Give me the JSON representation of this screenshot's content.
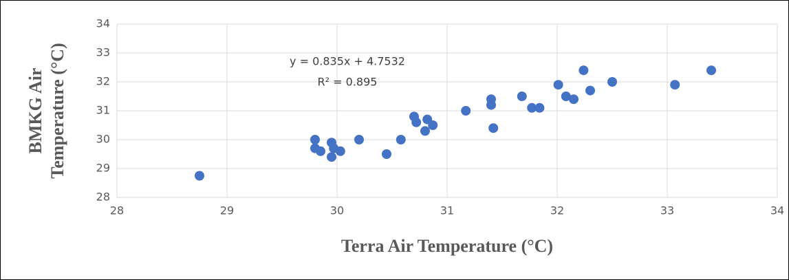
{
  "chart_data": {
    "type": "scatter",
    "x_label": "Terra Air Temperature (°C)",
    "y_label": [
      "BMKG Air",
      "Temperature (°C)"
    ],
    "annotations": [
      "y = 0.835x + 4.7532",
      "R² = 0.895"
    ],
    "series": [
      {
        "color": "#4472c4",
        "x": [
          28.75,
          29.8,
          29.8,
          29.85,
          29.95,
          29.95,
          29.97,
          30.03,
          30.2,
          30.45,
          30.58,
          30.7,
          30.72,
          30.8,
          30.82,
          30.87,
          31.17,
          31.4,
          31.4,
          31.42,
          31.68,
          31.77,
          31.84,
          32.01,
          32.08,
          32.15,
          32.24,
          32.3,
          32.5,
          33.07,
          33.4
        ],
        "values": [
          28.75,
          30.0,
          29.7,
          29.6,
          29.9,
          29.4,
          29.7,
          29.6,
          30.0,
          29.5,
          30.0,
          30.8,
          30.6,
          30.3,
          30.7,
          30.5,
          31.0,
          31.4,
          31.2,
          30.4,
          31.5,
          31.1,
          31.1,
          31.9,
          31.5,
          31.4,
          32.4,
          31.7,
          32.0,
          31.9,
          32.4
        ]
      }
    ],
    "xlim": [
      28,
      34
    ],
    "ylim": [
      28,
      34
    ],
    "xticks": [
      28,
      29,
      30,
      31,
      32,
      33,
      34
    ],
    "yticks": [
      28,
      29,
      30,
      31,
      32,
      33,
      34
    ],
    "grid": true
  }
}
